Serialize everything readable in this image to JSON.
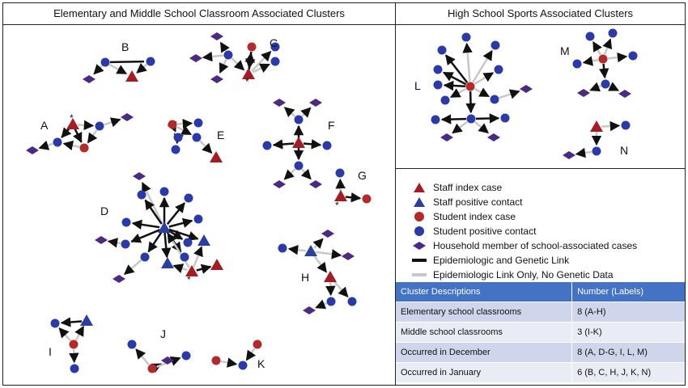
{
  "panels": {
    "left_title": "Elementary and Middle School Classroom Associated Clusters",
    "right_title": "High School Sports Associated Clusters"
  },
  "cluster_labels": [
    "A",
    "B",
    "C",
    "D",
    "E",
    "F",
    "G",
    "H",
    "I",
    "J",
    "K",
    "L",
    "M",
    "N"
  ],
  "asterisk": "*",
  "legend": {
    "staff_index": "Staff index case",
    "staff_contact": "Staff positive contact",
    "student_index": "Student index case",
    "student_contact": "Student positive contact",
    "household": "Household member of school-associated cases",
    "epi_genetic": "Epidemiologic and Genetic Link",
    "epi_only": "Epidemiologic Link Only, No Genetic Data"
  },
  "colors": {
    "staff_index": "#a51d24",
    "staff_contact": "#2b3f9e",
    "student_index": "#b22a2a",
    "student_contact": "#2c3aa8",
    "household": "#4a2a82",
    "genetic_link": "#111111",
    "epi_link": "#c8c8c8",
    "table_header": "#4472c4"
  },
  "table": {
    "headers": [
      "Cluster Descriptions",
      "Number (Labels)"
    ],
    "rows": [
      [
        "Elementary school classrooms",
        "8 (A-H)"
      ],
      [
        "Middle school classrooms",
        "3 (I-K)"
      ],
      [
        "Occurred in December",
        "8 (A, D-G, I, L, M)"
      ],
      [
        "Occurred in January",
        "6 (B, C, H, J, K, N)"
      ]
    ]
  }
}
